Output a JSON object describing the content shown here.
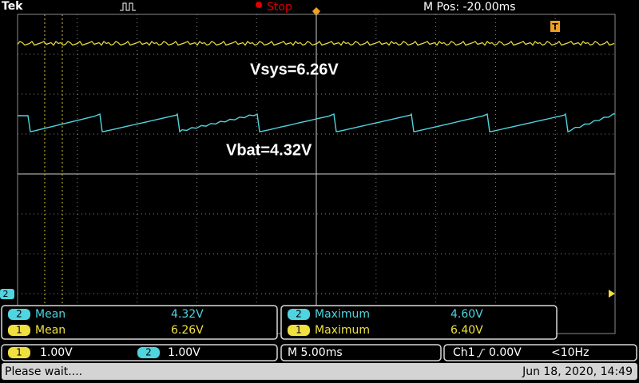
{
  "header": {
    "brand": "Tek",
    "status": "Stop",
    "position": "M Pos: -20.00ms",
    "trigger_marker": "T"
  },
  "annotations": [
    "Vsys=6.26V",
    "Vbat=4.32V"
  ],
  "channel_marker": "2",
  "measurements": [
    {
      "channel": "2",
      "name": "Mean",
      "value": "4.32V"
    },
    {
      "channel": "1",
      "name": "Mean",
      "value": "6.26V"
    },
    {
      "channel": "2",
      "name": "Maximum",
      "value": "4.60V"
    },
    {
      "channel": "1",
      "name": "Maximum",
      "value": "6.40V"
    }
  ],
  "settings": {
    "ch1_channel": "1",
    "ch1_scale": "1.00V",
    "ch2_channel": "2",
    "ch2_scale": "1.00V",
    "timebase": "M 5.00ms",
    "trigger_source": "Ch1",
    "trigger_level": "0.00V",
    "trigger_frequency": "<10Hz"
  },
  "status_bar": {
    "message": "Please wait....",
    "datetime": "Jun 18, 2020, 14:49"
  }
}
